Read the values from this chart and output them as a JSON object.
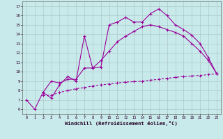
{
  "bg_color": "#c8eaea",
  "line_color": "#990099",
  "grid_color": "#b0c8c8",
  "xlabel": "Windchill (Refroidissement éolien,°C)",
  "xlim": [
    -0.5,
    23.5
  ],
  "ylim": [
    5.5,
    17.5
  ],
  "yticks": [
    6,
    7,
    8,
    9,
    10,
    11,
    12,
    13,
    14,
    15,
    16,
    17
  ],
  "xticks": [
    0,
    1,
    2,
    3,
    4,
    5,
    6,
    7,
    8,
    9,
    10,
    11,
    12,
    13,
    14,
    15,
    16,
    17,
    18,
    19,
    20,
    21,
    22,
    23
  ],
  "series1_x": [
    0,
    1,
    2,
    3,
    4,
    5,
    6,
    7,
    8,
    9,
    10,
    11,
    12,
    13,
    14,
    15,
    16,
    17,
    18,
    19,
    20,
    21,
    22,
    23
  ],
  "series1_y": [
    7.0,
    6.0,
    7.8,
    7.2,
    8.6,
    9.5,
    9.0,
    13.8,
    10.4,
    10.5,
    15.0,
    15.3,
    15.8,
    15.3,
    15.3,
    16.2,
    16.7,
    16.0,
    15.0,
    14.5,
    13.9,
    13.0,
    11.5,
    9.8
  ],
  "series2_x": [
    2,
    3,
    4,
    5,
    6,
    7,
    8,
    9,
    10,
    11,
    12,
    13,
    14,
    15,
    16,
    17,
    18,
    19,
    20,
    21,
    22,
    23
  ],
  "series2_y": [
    7.8,
    9.0,
    8.8,
    9.2,
    9.2,
    10.4,
    10.4,
    11.2,
    12.2,
    13.2,
    13.8,
    14.3,
    14.8,
    15.0,
    14.8,
    14.5,
    14.2,
    13.8,
    13.0,
    12.2,
    11.2,
    9.8
  ],
  "series3_x": [
    2,
    3,
    4,
    5,
    6,
    7,
    8,
    9,
    10,
    11,
    12,
    13,
    14,
    15,
    16,
    17,
    18,
    19,
    20,
    21,
    22,
    23
  ],
  "series3_y": [
    7.5,
    7.5,
    7.8,
    8.0,
    8.2,
    8.3,
    8.5,
    8.6,
    8.7,
    8.8,
    8.9,
    8.95,
    9.0,
    9.1,
    9.2,
    9.3,
    9.4,
    9.5,
    9.55,
    9.6,
    9.7,
    9.8
  ]
}
